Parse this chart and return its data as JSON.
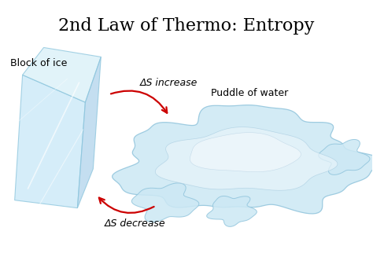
{
  "title": "2nd Law of Thermo: Entropy",
  "title_fontsize": 16,
  "title_font": "serif",
  "bg_color": "#ffffff",
  "label_block": "Block of ice",
  "label_puddle": "Puddle of water",
  "label_increase": "ΔS increase",
  "label_decrease": "ΔS decrease",
  "label_fontsize": 9,
  "arrow_color": "#cc0000",
  "figsize": [
    4.74,
    3.55
  ],
  "dpi": 100
}
